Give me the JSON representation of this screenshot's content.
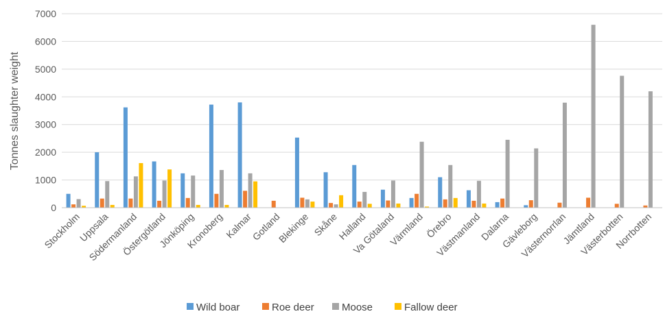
{
  "chart_data": {
    "type": "bar",
    "title": "",
    "xlabel": "",
    "ylabel": "Tonnes slaughter weight",
    "ylim": [
      0,
      7000
    ],
    "yticks": [
      0,
      1000,
      2000,
      3000,
      4000,
      5000,
      6000,
      7000
    ],
    "grid": "horizontal",
    "legend_position": "bottom",
    "categories": [
      "Stockholm",
      "Uppsala",
      "Södermanland",
      "Östergötland",
      "Jönköping",
      "Kronoberg",
      "Kalmar",
      "Gotland",
      "Blekinge",
      "Skåne",
      "Halland",
      "Va Götaland",
      "Värmland",
      "Örebro",
      "Västmanland",
      "Dalarna",
      "Gävleborg",
      "Västernorrlan",
      "Jämtland",
      "Västerbotten",
      "Norrbotten"
    ],
    "series": [
      {
        "name": "Wild boar",
        "color": "#5B9BD5",
        "values": [
          500,
          2000,
          3620,
          1670,
          1240,
          3720,
          3800,
          0,
          2530,
          1280,
          1540,
          650,
          350,
          1100,
          630,
          200,
          90,
          0,
          0,
          0,
          0
        ]
      },
      {
        "name": "Roe deer",
        "color": "#ED7D31",
        "values": [
          120,
          330,
          330,
          250,
          350,
          500,
          610,
          250,
          360,
          170,
          220,
          260,
          500,
          300,
          250,
          330,
          270,
          180,
          360,
          140,
          80
        ]
      },
      {
        "name": "Moose",
        "color": "#A5A5A5",
        "values": [
          310,
          960,
          1130,
          980,
          1160,
          1360,
          1240,
          0,
          300,
          120,
          570,
          980,
          2380,
          1540,
          970,
          2450,
          2140,
          3790,
          6600,
          4760,
          4200
        ]
      },
      {
        "name": "Fallow deer",
        "color": "#FFC000",
        "values": [
          70,
          100,
          1610,
          1380,
          100,
          100,
          950,
          0,
          220,
          450,
          140,
          150,
          40,
          350,
          150,
          0,
          0,
          0,
          0,
          0,
          0
        ]
      }
    ]
  }
}
